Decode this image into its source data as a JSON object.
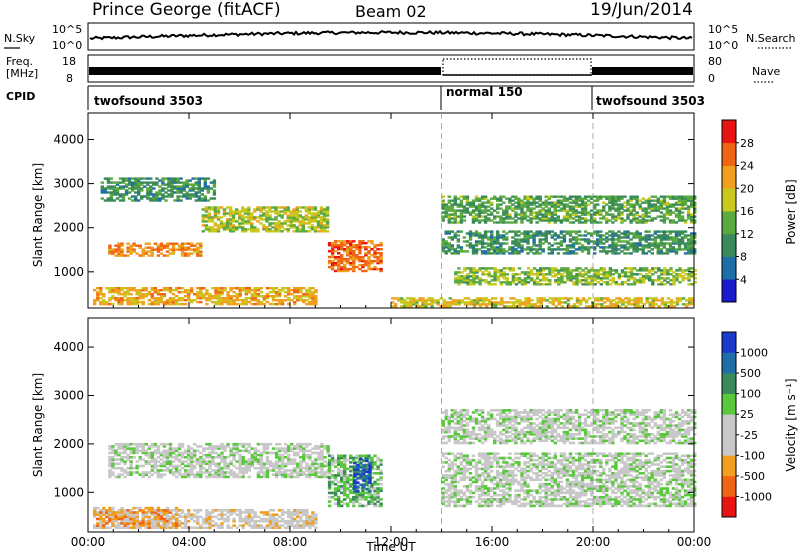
{
  "header": {
    "station": "Prince George (fitACF)",
    "beam": "Beam 02",
    "date": "19/Jun/2014"
  },
  "noise_panel": {
    "left_label": "N.Sky",
    "left_ticks": [
      "10^5",
      "10^0"
    ],
    "right_ticks": [
      "10^5",
      "10^0"
    ],
    "right_label": "N.Search"
  },
  "freq_panel": {
    "left_label_1": "Freq.",
    "left_label_2": "[MHz]",
    "left_ticks": [
      "18",
      "8"
    ],
    "right_ticks": [
      "80",
      "0"
    ],
    "right_label": "Nave"
  },
  "cpid_panel": {
    "label": "CPID",
    "segments": [
      {
        "name": "twofsound 3503",
        "start": "00:00",
        "end": "14:00"
      },
      {
        "name": "normal 150",
        "start": "14:00",
        "end": "20:00"
      },
      {
        "name": "twofsound 3503",
        "start": "20:00",
        "end": "24:00"
      }
    ]
  },
  "chart_data": [
    {
      "type": "heatmap",
      "title": "",
      "xlabel": "",
      "ylabel": "Slant Range [km]",
      "x_ticks": [
        "00:00",
        "04:00",
        "08:00",
        "12:00",
        "16:00",
        "20:00",
        "00:00"
      ],
      "xlim_hours": [
        0,
        24
      ],
      "y_ticks": [
        1000,
        2000,
        3000,
        4000
      ],
      "ylim": [
        180,
        4600
      ],
      "colorbar": {
        "label": "Power [dB]",
        "ticks": [
          "4",
          "8",
          "12",
          "16",
          "20",
          "24",
          "28"
        ],
        "range": [
          0,
          30
        ],
        "colors": [
          "#1a1acd",
          "#1e6ea8",
          "#3a8a5a",
          "#5aaa40",
          "#c8c81e",
          "#f0a01e",
          "#f06414",
          "#e81414"
        ]
      },
      "bands": [
        {
          "t0": 0.2,
          "t1": 9.0,
          "r0": 250,
          "r1": 650,
          "value": 20
        },
        {
          "t0": 0.8,
          "t1": 4.5,
          "r0": 1350,
          "r1": 1650,
          "value": 22
        },
        {
          "t0": 4.5,
          "t1": 9.5,
          "r0": 1900,
          "r1": 2450,
          "value": 16
        },
        {
          "t0": 9.5,
          "t1": 11.6,
          "r0": 1000,
          "r1": 1700,
          "value": 24
        },
        {
          "t0": 0.5,
          "t1": 5.0,
          "r0": 2600,
          "r1": 3100,
          "value": 10
        },
        {
          "t0": 14.0,
          "t1": 24.0,
          "r0": 2100,
          "r1": 2700,
          "value": 12
        },
        {
          "t0": 14.0,
          "t1": 24.0,
          "r0": 1400,
          "r1": 1900,
          "value": 10
        },
        {
          "t0": 14.5,
          "t1": 24.0,
          "r0": 700,
          "r1": 1100,
          "value": 14
        },
        {
          "t0": 12.0,
          "t1": 24.0,
          "r0": 200,
          "r1": 400,
          "value": 18
        }
      ]
    },
    {
      "type": "heatmap",
      "title": "",
      "xlabel": "Time UT",
      "ylabel": "Slant Range [km]",
      "x_ticks": [
        "00:00",
        "04:00",
        "08:00",
        "12:00",
        "16:00",
        "20:00",
        "00:00"
      ],
      "xlim_hours": [
        0,
        24
      ],
      "y_ticks": [
        1000,
        2000,
        3000,
        4000
      ],
      "ylim": [
        180,
        4600
      ],
      "colorbar": {
        "label": "Velocity [m s⁻¹]",
        "ticks": [
          "1000",
          "500",
          "100",
          "25",
          "-25",
          "-100",
          "-500",
          "-1000"
        ],
        "range": [
          -1200,
          1200
        ],
        "colors": [
          "#e81414",
          "#f06414",
          "#f0a01e",
          "#c8c8c8",
          "#c8c8c8",
          "#5ac83c",
          "#3a8a5a",
          "#1e6ea8",
          "#1a3acd"
        ]
      },
      "bands": [
        {
          "t0": 0.2,
          "t1": 9.0,
          "r0": 250,
          "r1": 650,
          "value": -200
        },
        {
          "t0": 0.2,
          "t1": 3.5,
          "r0": 250,
          "r1": 700,
          "value": -500
        },
        {
          "t0": 0.8,
          "t1": 9.5,
          "r0": 1300,
          "r1": 2000,
          "value": 0
        },
        {
          "t0": 9.5,
          "t1": 11.6,
          "r0": 700,
          "r1": 1750,
          "value": 300
        },
        {
          "t0": 10.5,
          "t1": 11.2,
          "r0": 1000,
          "r1": 1700,
          "value": 900
        },
        {
          "t0": 14.0,
          "t1": 24.0,
          "r0": 2000,
          "r1": 2700,
          "value": 0
        },
        {
          "t0": 14.0,
          "t1": 24.0,
          "r0": 700,
          "r1": 1800,
          "value": 0
        }
      ]
    }
  ]
}
